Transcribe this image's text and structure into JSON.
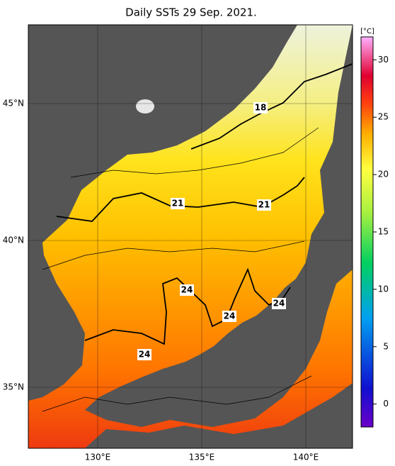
{
  "title": "Daily SSTs 29 Sep. 2021.",
  "map": {
    "lat_labels": [
      "45°N",
      "40°N",
      "35°N"
    ],
    "lon_labels": [
      "130°E",
      "135°E",
      "140°E"
    ],
    "contour_labels": [
      "18",
      "21",
      "21",
      "24",
      "24",
      "24",
      "24"
    ]
  },
  "colorbar": {
    "unit": "[°C]",
    "range": [
      -2,
      32
    ],
    "ticks": [
      0,
      5,
      10,
      15,
      20,
      25,
      30
    ]
  }
}
